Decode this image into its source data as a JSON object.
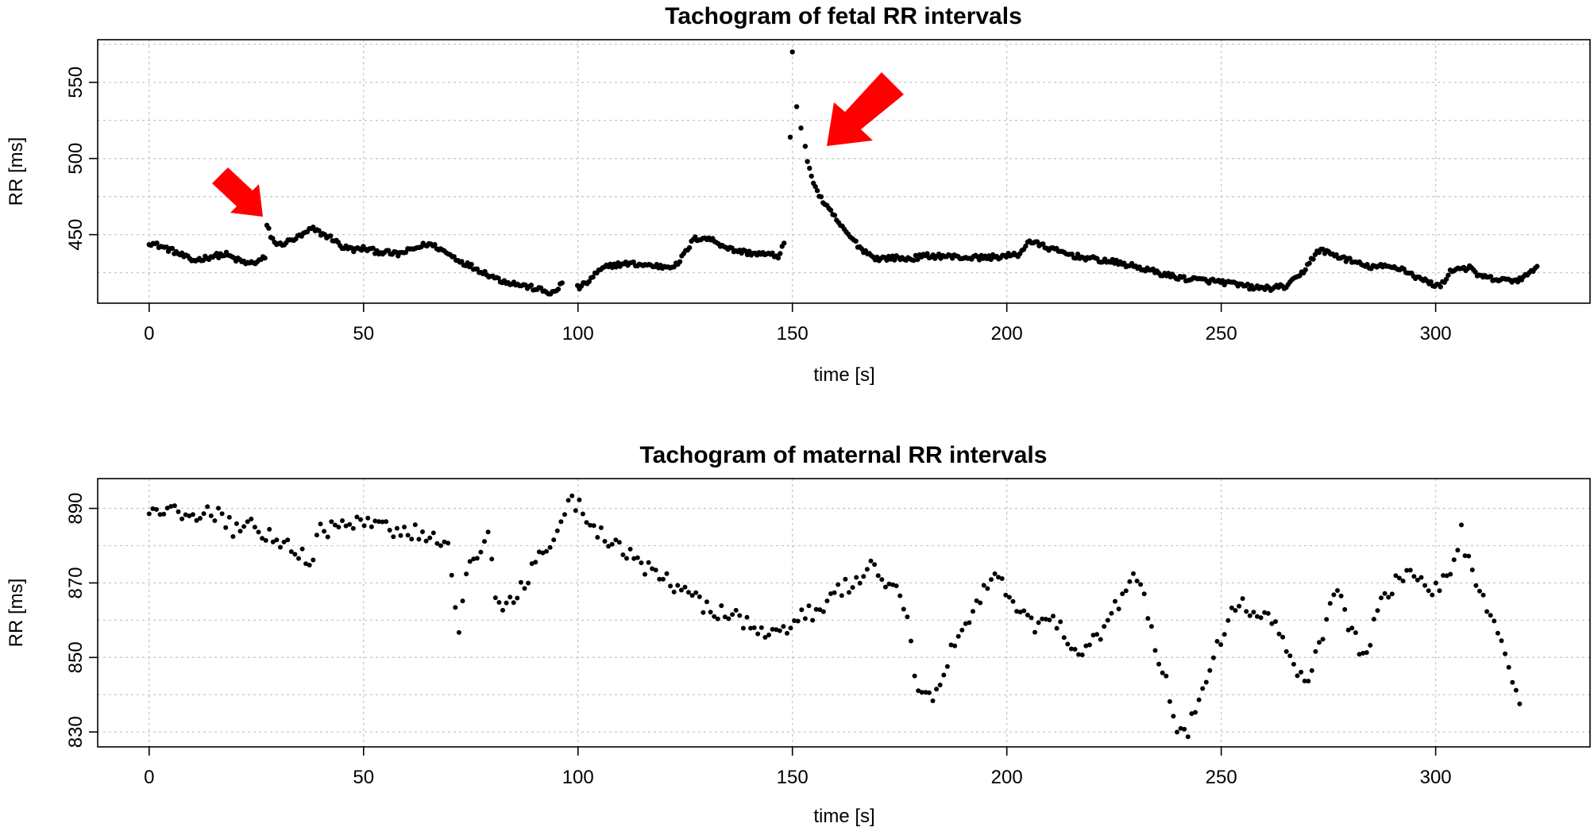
{
  "chart_data": [
    {
      "type": "scatter",
      "title": "Tachogram of fetal RR intervals",
      "xlabel": "time [s]",
      "ylabel": "RR [ms]",
      "xlim": [
        -12,
        336
      ],
      "ylim": [
        405,
        578
      ],
      "xticks": [
        0,
        50,
        100,
        150,
        200,
        250,
        300
      ],
      "yticks": [
        450,
        500,
        550
      ],
      "grid": true,
      "point_color": "#000000",
      "annotations": [
        {
          "kind": "arrow",
          "color": "#ff0000",
          "points_to": {
            "x": 25,
            "y": 458
          }
        },
        {
          "kind": "arrow",
          "color": "#ff0000",
          "points_to": {
            "x": 158,
            "y": 508
          }
        }
      ],
      "anchors": [
        [
          0,
          445
        ],
        [
          2,
          443
        ],
        [
          5,
          440
        ],
        [
          8,
          436
        ],
        [
          10,
          433
        ],
        [
          12,
          434
        ],
        [
          15,
          436
        ],
        [
          18,
          437
        ],
        [
          20,
          434
        ],
        [
          23,
          431
        ],
        [
          25,
          432
        ],
        [
          27,
          435
        ],
        [
          27.5,
          457
        ],
        [
          28.5,
          448
        ],
        [
          30,
          443
        ],
        [
          33,
          446
        ],
        [
          36,
          450
        ],
        [
          38,
          454
        ],
        [
          40,
          451
        ],
        [
          43,
          447
        ],
        [
          45,
          442
        ],
        [
          48,
          440
        ],
        [
          50,
          441
        ],
        [
          53,
          439
        ],
        [
          56,
          438
        ],
        [
          58,
          437
        ],
        [
          60,
          439
        ],
        [
          63,
          442
        ],
        [
          65,
          444
        ],
        [
          67,
          442
        ],
        [
          70,
          437
        ],
        [
          73,
          432
        ],
        [
          76,
          428
        ],
        [
          79,
          424
        ],
        [
          82,
          420
        ],
        [
          85,
          418
        ],
        [
          88,
          416
        ],
        [
          91,
          414
        ],
        [
          93,
          412
        ],
        [
          95,
          412
        ],
        [
          96,
          419
        ],
        [
          100,
          415
        ],
        [
          102,
          418
        ],
        [
          104,
          424
        ],
        [
          106,
          428
        ],
        [
          108,
          430
        ],
        [
          112,
          431
        ],
        [
          116,
          430
        ],
        [
          120,
          429
        ],
        [
          123,
          430
        ],
        [
          125,
          438
        ],
        [
          127,
          447
        ],
        [
          129,
          448
        ],
        [
          131,
          447
        ],
        [
          133,
          444
        ],
        [
          136,
          440
        ],
        [
          140,
          438
        ],
        [
          144,
          437
        ],
        [
          147,
          436
        ],
        [
          148.5,
          449
        ]
      ],
      "anchors_tail": [
        [
          154,
          492
        ],
        [
          156,
          477
        ],
        [
          158,
          468
        ],
        [
          160,
          461
        ],
        [
          162,
          453
        ],
        [
          164,
          447
        ],
        [
          166,
          441
        ],
        [
          168,
          437
        ],
        [
          170,
          434
        ],
        [
          173,
          435
        ],
        [
          177,
          434
        ],
        [
          181,
          436
        ],
        [
          185,
          436
        ],
        [
          190,
          435
        ],
        [
          195,
          435
        ],
        [
          200,
          436
        ],
        [
          203,
          437
        ],
        [
          205,
          446
        ],
        [
          208,
          443
        ],
        [
          212,
          439
        ],
        [
          216,
          436
        ],
        [
          220,
          434
        ],
        [
          225,
          432
        ],
        [
          230,
          429
        ],
        [
          234,
          426
        ],
        [
          238,
          423
        ],
        [
          242,
          421
        ],
        [
          246,
          420
        ],
        [
          250,
          419
        ],
        [
          254,
          417
        ],
        [
          258,
          415
        ],
        [
          262,
          415
        ],
        [
          265,
          416
        ],
        [
          267,
          420
        ],
        [
          269,
          425
        ],
        [
          271,
          434
        ],
        [
          273,
          440
        ],
        [
          276,
          437
        ],
        [
          280,
          433
        ],
        [
          284,
          429
        ],
        [
          288,
          429
        ],
        [
          292,
          428
        ],
        [
          295,
          423
        ],
        [
          298,
          419
        ],
        [
          301,
          416
        ],
        [
          302,
          419
        ],
        [
          303,
          425
        ],
        [
          305,
          428
        ],
        [
          308,
          428
        ],
        [
          310,
          423
        ],
        [
          313,
          421
        ],
        [
          316,
          420
        ],
        [
          319,
          420
        ],
        [
          322,
          424
        ],
        [
          324,
          432
        ]
      ],
      "spike": [
        [
          149.5,
          514
        ],
        [
          150,
          570
        ],
        [
          151,
          534
        ],
        [
          152,
          520
        ],
        [
          153,
          508
        ],
        [
          153.5,
          498
        ]
      ]
    },
    {
      "type": "scatter",
      "title": "Tachogram of maternal RR intervals",
      "xlabel": "time [s]",
      "ylabel": "RR [ms]",
      "xlim": [
        -12,
        336
      ],
      "ylim": [
        826,
        898
      ],
      "xticks": [
        0,
        50,
        100,
        150,
        200,
        250,
        300
      ],
      "yticks": [
        830,
        850,
        870,
        890
      ],
      "grid": true,
      "point_color": "#000000",
      "anchors": [
        [
          0,
          888
        ],
        [
          3,
          890
        ],
        [
          6,
          889
        ],
        [
          10,
          887
        ],
        [
          14,
          889
        ],
        [
          17,
          888
        ],
        [
          20,
          884
        ],
        [
          24,
          886
        ],
        [
          27,
          883
        ],
        [
          30,
          882
        ],
        [
          33,
          880
        ],
        [
          36,
          877
        ],
        [
          38,
          876
        ],
        [
          40,
          885
        ],
        [
          44,
          884
        ],
        [
          48,
          887
        ],
        [
          52,
          886
        ],
        [
          56,
          884
        ],
        [
          60,
          884
        ],
        [
          64,
          883
        ],
        [
          68,
          882
        ],
        [
          70,
          880
        ],
        [
          71,
          868
        ],
        [
          72,
          854
        ],
        [
          74,
          872
        ],
        [
          77,
          878
        ],
        [
          79,
          883
        ],
        [
          81,
          865
        ],
        [
          83,
          864
        ],
        [
          86,
          867
        ],
        [
          88,
          870
        ],
        [
          90,
          875
        ],
        [
          93,
          880
        ],
        [
          96,
          888
        ],
        [
          98,
          893
        ],
        [
          100,
          891
        ],
        [
          102,
          888
        ],
        [
          104,
          884
        ],
        [
          107,
          882
        ],
        [
          110,
          880
        ],
        [
          113,
          876
        ],
        [
          116,
          874
        ],
        [
          119,
          871
        ],
        [
          122,
          870
        ],
        [
          125,
          868
        ],
        [
          128,
          865
        ],
        [
          131,
          863
        ],
        [
          134,
          862
        ],
        [
          137,
          861
        ],
        [
          140,
          858
        ],
        [
          143,
          856
        ],
        [
          146,
          856
        ],
        [
          148,
          857
        ],
        [
          150,
          860
        ],
        [
          153,
          862
        ],
        [
          156,
          862
        ],
        [
          159,
          866
        ],
        [
          162,
          869
        ],
        [
          165,
          870
        ],
        [
          168,
          874
        ],
        [
          170,
          872
        ],
        [
          173,
          870
        ],
        [
          175,
          866
        ],
        [
          177,
          860
        ],
        [
          178,
          851
        ],
        [
          179,
          841
        ],
        [
          181,
          842
        ],
        [
          183,
          838
        ],
        [
          185,
          846
        ],
        [
          187,
          852
        ],
        [
          189,
          856
        ],
        [
          191,
          858
        ],
        [
          193,
          864
        ],
        [
          195,
          868
        ],
        [
          197,
          872
        ],
        [
          199,
          869
        ],
        [
          201,
          866
        ],
        [
          203,
          862
        ],
        [
          205,
          859
        ],
        [
          208,
          858
        ],
        [
          211,
          860
        ],
        [
          213,
          857
        ],
        [
          215,
          854
        ],
        [
          217,
          851
        ],
        [
          219,
          853
        ],
        [
          222,
          857
        ],
        [
          225,
          863
        ],
        [
          228,
          869
        ],
        [
          230,
          872
        ],
        [
          232,
          866
        ],
        [
          234,
          855
        ],
        [
          236,
          848
        ],
        [
          238,
          840
        ],
        [
          240,
          830
        ],
        [
          242,
          830
        ],
        [
          244,
          836
        ],
        [
          246,
          844
        ],
        [
          248,
          850
        ],
        [
          250,
          856
        ],
        [
          252,
          862
        ],
        [
          255,
          864
        ],
        [
          258,
          863
        ],
        [
          261,
          860
        ],
        [
          264,
          856
        ],
        [
          266,
          850
        ],
        [
          268,
          846
        ],
        [
          270,
          841
        ],
        [
          272,
          850
        ],
        [
          274,
          858
        ],
        [
          276,
          868
        ],
        [
          278,
          866
        ],
        [
          280,
          858
        ],
        [
          282,
          853
        ],
        [
          284,
          852
        ],
        [
          286,
          860
        ],
        [
          288,
          866
        ],
        [
          291,
          871
        ],
        [
          294,
          872
        ],
        [
          297,
          869
        ],
        [
          300,
          868
        ],
        [
          303,
          872
        ],
        [
          305,
          878
        ],
        [
          306,
          884
        ],
        [
          307,
          878
        ],
        [
          309,
          872
        ],
        [
          311,
          866
        ],
        [
          313,
          860
        ],
        [
          315,
          854
        ],
        [
          317,
          847
        ],
        [
          319,
          842
        ],
        [
          320,
          838
        ]
      ]
    }
  ]
}
